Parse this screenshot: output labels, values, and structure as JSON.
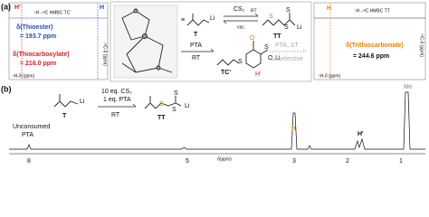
{
  "panel_a": {
    "label": "(a)",
    "hmbc_tc": {
      "h_prime": "H'",
      "h": "H",
      "title": "¹H -¹³C HMBC TC'",
      "thioester_label": "δ(Thioester)",
      "thioester_value": "= 193.7 ppm",
      "thiocarboxylate_label": "δ(Thiocarboxylate)",
      "thiocarboxylate_value": "= 216.0 ppm",
      "x_axis": "¹H-δ (ppm)",
      "y_axis": "¹³C-δ (ppm)"
    },
    "scheme": {
      "t_li": "Li",
      "t_label": "T",
      "cs2": "CS₂",
      "rt_forward": "RT",
      "vac": "vac.",
      "tt_s1": "S",
      "tt_s2": "S",
      "tt_s3": "S",
      "tt_li": "Li",
      "tt_label": "TT",
      "pta": "PTA",
      "rt_pta": "RT",
      "tc_s": "S",
      "tc_label": "TC'",
      "product_o": "O",
      "product_s": "S",
      "product_oli": "O",
      "product_li": "Li",
      "product_h_prime": "H'",
      "pta_heat": "PTA, ΔT",
      "unselective": "unselective"
    },
    "hmbc_tt": {
      "h": "H",
      "title": "¹H -¹³C HMBC TT",
      "trithiocarbonate_label": "δ(Trithiocarbonate)",
      "trithiocarbonate_value": "= 244.6 ppm",
      "x_axis": "¹H-δ (ppm)",
      "y_axis": "¹³C-δ (ppm)"
    }
  },
  "panel_b": {
    "label": "(b)",
    "scheme": {
      "t_li": "Li",
      "t_label": "T",
      "reagent_1": "10 eq. CS₂",
      "reagent_2": "1 eq. PTA",
      "condition": "RT",
      "tt_s1": "S",
      "tt_s2": "S",
      "tt_s3": "S",
      "tt_li": "Li",
      "tt_label": "TT"
    },
    "spectrum": {
      "unconsumed": "Unconsumed",
      "pta": "PTA",
      "h": "H",
      "h_prime": "H'",
      "me": "Me",
      "ticks": [
        "8",
        "5",
        "3",
        "2",
        "1"
      ],
      "axis_label": "δ(ppm)"
    }
  }
}
